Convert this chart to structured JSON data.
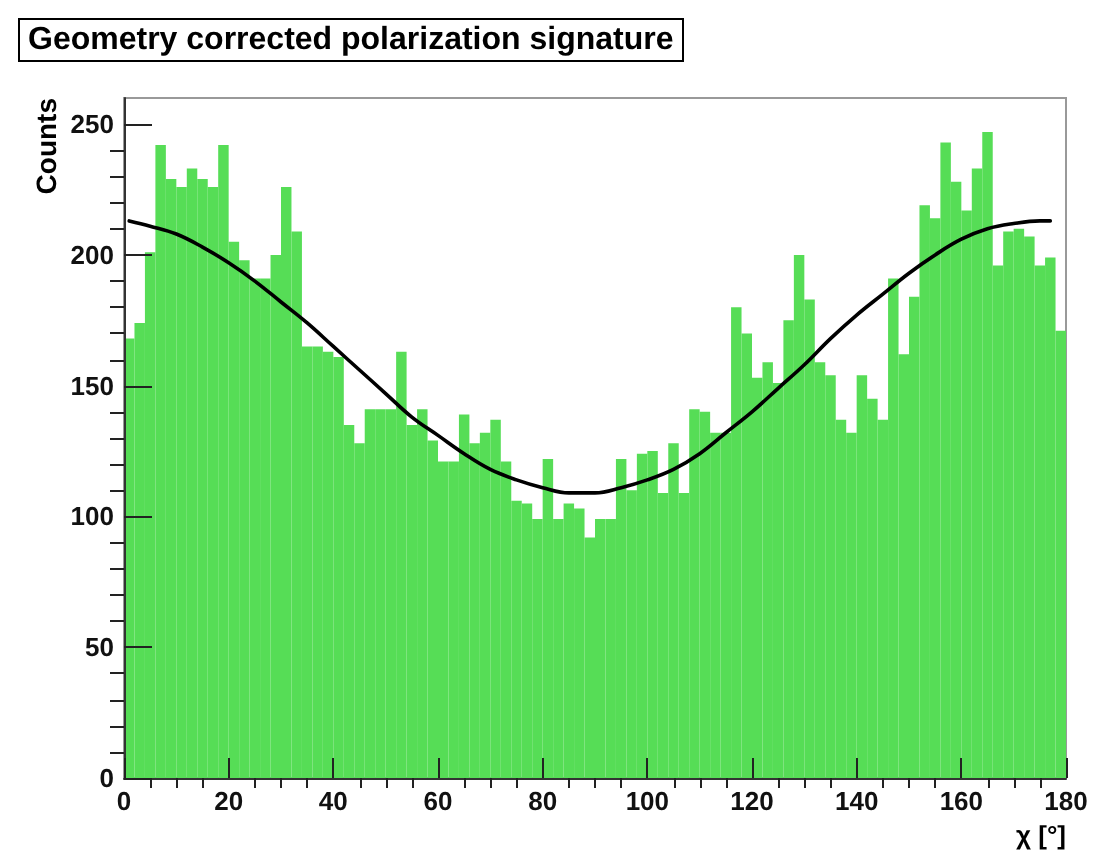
{
  "chart_data": {
    "type": "histogram",
    "title": "Geometry corrected polarization signature",
    "xlabel": "χ [°]",
    "ylabel": "Counts",
    "bins": [
      0,
      2,
      4,
      6,
      8,
      10,
      12,
      14,
      16,
      18,
      20,
      22,
      24,
      26,
      28,
      30,
      32,
      34,
      36,
      38,
      40,
      42,
      44,
      46,
      48,
      50,
      52,
      54,
      56,
      58,
      60,
      62,
      64,
      66,
      68,
      70,
      72,
      74,
      76,
      78,
      80,
      82,
      84,
      86,
      88,
      90,
      92,
      94,
      96,
      98,
      100,
      102,
      104,
      106,
      108,
      110,
      112,
      114,
      116,
      118,
      120,
      122,
      124,
      126,
      128,
      130,
      132,
      134,
      136,
      138,
      140,
      142,
      144,
      146,
      148,
      150,
      152,
      154,
      156,
      158,
      160,
      162,
      164,
      166,
      168,
      170,
      172,
      174,
      176,
      178,
      180
    ],
    "series": [
      {
        "color": "#56dd56",
        "values": [
          168,
          174,
          201,
          242,
          229,
          226,
          233,
          229,
          226,
          242,
          205,
          198,
          191,
          191,
          200,
          226,
          209,
          165,
          165,
          163,
          161,
          135,
          128,
          141,
          141,
          141,
          163,
          135,
          141,
          129,
          121,
          121,
          139,
          128,
          132,
          137,
          121,
          106,
          105,
          99,
          122,
          99,
          105,
          103,
          92,
          99,
          99,
          122,
          110,
          124,
          125,
          109,
          128,
          109,
          141,
          140,
          132,
          132,
          180,
          170,
          153,
          159,
          151,
          175,
          200,
          183,
          159,
          154,
          137,
          132,
          154,
          145,
          137,
          191,
          162,
          184,
          219,
          214,
          243,
          228,
          217,
          233,
          247,
          196,
          209,
          210,
          207,
          196,
          199,
          171
        ]
      },
      {
        "type": "line",
        "color": "#000000",
        "marker": "none",
        "line_style": "solid",
        "x": [
          1,
          5,
          10,
          15,
          20,
          25,
          30,
          35,
          40,
          45,
          50,
          55,
          60,
          65,
          70,
          75,
          80,
          85,
          90,
          95,
          100,
          105,
          110,
          115,
          120,
          125,
          130,
          135,
          140,
          145,
          150,
          155,
          160,
          165,
          170,
          175,
          177
        ],
        "values": [
          213,
          211,
          208,
          203,
          197,
          190,
          182,
          174,
          165,
          156,
          147,
          138,
          131,
          124,
          118,
          114,
          111,
          109,
          109,
          111,
          114,
          118,
          124,
          132,
          140,
          149,
          158,
          168,
          177,
          185,
          193,
          200,
          206,
          210,
          212,
          213,
          213
        ]
      }
    ],
    "xlim": [
      0,
      180
    ],
    "ylim": [
      0,
      260
    ],
    "xticks": [
      0,
      {
        "value": 5,
        "label": null
      },
      {
        "value": 10,
        "label": null
      },
      {
        "value": 15,
        "label": null
      },
      20,
      {
        "value": 25,
        "label": null
      },
      {
        "value": 30,
        "label": null
      },
      {
        "value": 35,
        "label": null
      },
      40,
      {
        "value": 45,
        "label": null
      },
      {
        "value": 50,
        "label": null
      },
      {
        "value": 55,
        "label": null
      },
      60,
      {
        "value": 65,
        "label": null
      },
      {
        "value": 70,
        "label": null
      },
      {
        "value": 75,
        "label": null
      },
      80,
      {
        "value": 85,
        "label": null
      },
      {
        "value": 90,
        "label": null
      },
      {
        "value": 95,
        "label": null
      },
      100,
      {
        "value": 105,
        "label": null
      },
      {
        "value": 110,
        "label": null
      },
      {
        "value": 115,
        "label": null
      },
      120,
      {
        "value": 125,
        "label": null
      },
      {
        "value": 130,
        "label": null
      },
      {
        "value": 135,
        "label": null
      },
      140,
      {
        "value": 145,
        "label": null
      },
      {
        "value": 150,
        "label": null
      },
      {
        "value": 155,
        "label": null
      },
      160,
      {
        "value": 165,
        "label": null
      },
      {
        "value": 170,
        "label": null
      },
      {
        "value": 175,
        "label": null
      },
      180
    ],
    "yticks": [
      0,
      {
        "value": 10,
        "label": null
      },
      {
        "value": 20,
        "label": null
      },
      {
        "value": 30,
        "label": null
      },
      {
        "value": 40,
        "label": null
      },
      50,
      {
        "value": 60,
        "label": null
      },
      {
        "value": 70,
        "label": null
      },
      {
        "value": 80,
        "label": null
      },
      {
        "value": 90,
        "label": null
      },
      100,
      {
        "value": 110,
        "label": null
      },
      {
        "value": 120,
        "label": null
      },
      {
        "value": 130,
        "label": null
      },
      {
        "value": 140,
        "label": null
      },
      150,
      {
        "value": 160,
        "label": null
      },
      {
        "value": 170,
        "label": null
      },
      {
        "value": 180,
        "label": null
      },
      {
        "value": 190,
        "label": null
      },
      200,
      {
        "value": 210,
        "label": null
      },
      {
        "value": 220,
        "label": null
      },
      {
        "value": 230,
        "label": null
      },
      {
        "value": 240,
        "label": null
      },
      250
    ]
  }
}
